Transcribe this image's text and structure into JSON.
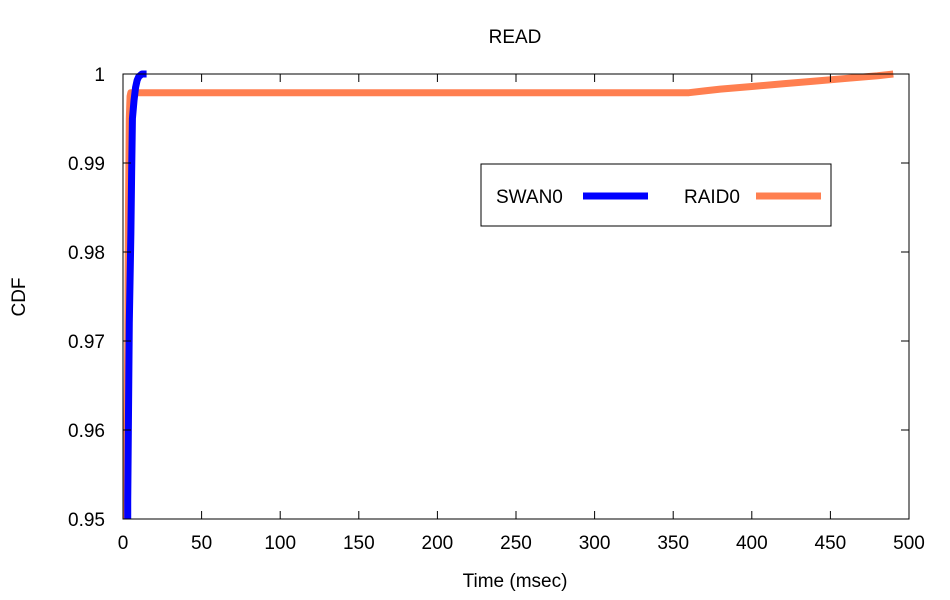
{
  "chart_data": {
    "type": "line",
    "title": "READ",
    "xlabel": "Time (msec)",
    "ylabel": "CDF",
    "xlim": [
      0,
      500
    ],
    "ylim": [
      0.95,
      1.0
    ],
    "xticks": [
      "0",
      "50",
      "100",
      "150",
      "200",
      "250",
      "300",
      "350",
      "400",
      "450",
      "500"
    ],
    "yticks": [
      "0.95",
      "0.96",
      "0.97",
      "0.98",
      "0.99",
      "1"
    ],
    "grid": false,
    "legend": {
      "placement": "top-right-inside",
      "orientation": "horizontal"
    },
    "series": [
      {
        "name": "SWAN0",
        "color": "#0000ff",
        "points": [
          [
            3,
            0.95
          ],
          [
            3,
            0.952
          ],
          [
            4,
            0.972
          ],
          [
            5,
            0.982
          ],
          [
            5.5,
            0.989
          ],
          [
            6,
            0.995
          ],
          [
            7,
            0.997
          ],
          [
            8,
            0.9985
          ],
          [
            9,
            0.9993
          ],
          [
            10,
            0.9997
          ],
          [
            12,
            1.0
          ],
          [
            15,
            1.0
          ]
        ]
      },
      {
        "name": "RAID0",
        "color": "#ff7f50",
        "points": [
          [
            2,
            0.95
          ],
          [
            2.5,
            0.96
          ],
          [
            3,
            0.97
          ],
          [
            3.5,
            0.985
          ],
          [
            4,
            0.995
          ],
          [
            4.5,
            0.9975
          ],
          [
            5,
            0.9979
          ],
          [
            100,
            0.9979
          ],
          [
            200,
            0.9979
          ],
          [
            300,
            0.9979
          ],
          [
            360,
            0.9979
          ],
          [
            370,
            0.9981
          ],
          [
            380,
            0.9983
          ],
          [
            400,
            0.9986
          ],
          [
            420,
            0.9989
          ],
          [
            440,
            0.9992
          ],
          [
            460,
            0.9995
          ],
          [
            480,
            0.9998
          ],
          [
            490,
            1.0
          ]
        ]
      }
    ]
  }
}
